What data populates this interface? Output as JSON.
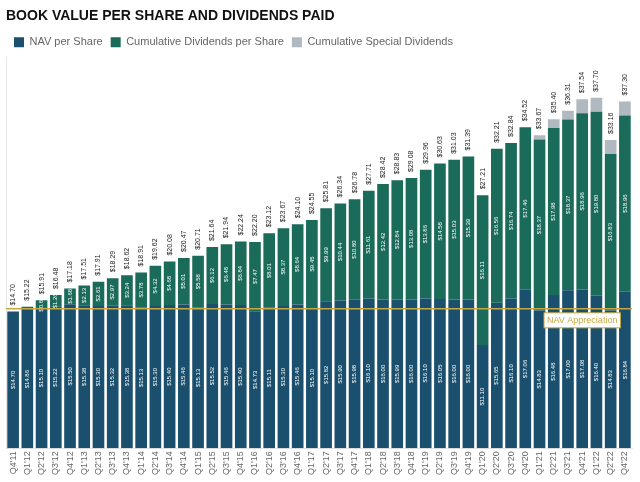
{
  "chart_data": {
    "type": "bar",
    "title": "BOOK VALUE PER SHARE AND DIVIDENDS PAID",
    "categories": [
      "Q4'11",
      "Q1'12",
      "Q2'12",
      "Q3'12",
      "Q4'12",
      "Q1'13",
      "Q2'13",
      "Q3'13",
      "Q4'13",
      "Q1'14",
      "Q2'14",
      "Q3'14",
      "Q4'14",
      "Q1'15",
      "Q2'15",
      "Q3'15",
      "Q4'15",
      "Q1'16",
      "Q2'16",
      "Q3'16",
      "Q4'16",
      "Q1'17",
      "Q2'17",
      "Q3'17",
      "Q4'17",
      "Q1'18",
      "Q2'18",
      "Q3'18",
      "Q4'18",
      "Q1'19",
      "Q2'19",
      "Q3'19",
      "Q4'19",
      "Q1'20",
      "Q2'20",
      "Q3'20",
      "Q4'20",
      "Q1'21",
      "Q2'21",
      "Q3'21",
      "Q4'21",
      "Q1'22",
      "Q2'22",
      "Q4'22"
    ],
    "series": [
      {
        "name": "NAV per Share",
        "color": "#1a4f6e",
        "values": [
          14.7,
          14.86,
          15.1,
          15.22,
          15.5,
          15.38,
          15.3,
          15.32,
          15.38,
          15.13,
          15.3,
          15.4,
          15.46,
          15.13,
          15.52,
          15.46,
          15.4,
          14.73,
          15.11,
          15.3,
          15.46,
          15.1,
          15.82,
          15.9,
          15.98,
          16.1,
          16.0,
          15.99,
          16.0,
          16.1,
          16.05,
          16.0,
          16.0,
          11.1,
          15.65,
          16.1,
          17.06,
          14.83,
          16.48,
          17.0,
          17.08,
          16.4,
          14.83,
          16.84
        ],
        "value_labels": [
          "$14.70",
          "$14.86",
          "$15.10",
          "$15.22",
          "$15.50",
          "$15.38",
          "$15.30",
          "$15.32",
          "$15.38",
          "$15.13",
          "$15.30",
          "$15.40",
          "$15.46",
          "$15.13",
          "$15.52",
          "$15.46",
          "$15.40",
          "$14.73",
          "$15.11",
          "$15.30",
          "$15.46",
          "$15.10",
          "$15.82",
          "$15.90",
          "$15.98",
          "$16.10",
          "$16.00",
          "$15.99",
          "$16.00",
          "$16.10",
          "$16.05",
          "$16.00",
          "$16.00",
          "$11.10",
          "$15.65",
          "$16.10",
          "$17.06",
          "$14.83",
          "$16.48",
          "$17.00",
          "$17.08",
          "$16.40",
          "$14.83",
          "$16.84"
        ]
      },
      {
        "name": "Cumulative Dividends per Share",
        "color": "#1a6b5a",
        "values": [
          0.0,
          0.36,
          0.81,
          1.26,
          1.68,
          2.13,
          2.61,
          2.97,
          3.24,
          3.78,
          4.32,
          4.68,
          5.01,
          5.58,
          6.12,
          6.48,
          6.84,
          7.47,
          8.01,
          8.37,
          8.64,
          9.45,
          9.99,
          10.44,
          10.8,
          11.61,
          12.42,
          12.84,
          13.08,
          13.86,
          14.58,
          15.03,
          15.39,
          16.11,
          16.56,
          16.74,
          17.46,
          18.37,
          17.98,
          18.37,
          18.96,
          19.8,
          16.83,
          18.96
        ],
        "value_labels": [
          null,
          null,
          "$0.81",
          "$1.26",
          "$1.68",
          "$2.13",
          "$2.61",
          "$2.97",
          "$3.24",
          "$3.78",
          "$4.32",
          "$4.68",
          "$5.01",
          "$5.58",
          "$6.12",
          "$6.48",
          "$6.84",
          "$7.47",
          "$8.01",
          "$8.37",
          "$8.64",
          "$9.45",
          "$9.99",
          "$10.44",
          "$10.80",
          "$11.61",
          "$12.42",
          "$12.84",
          "$13.08",
          "$13.86",
          "$14.58",
          "$15.03",
          "$15.39",
          "$16.11",
          "$16.56",
          "$16.74",
          "$17.46",
          "$18.37",
          "$17.98",
          "$18.37",
          "$18.96",
          "$19.80",
          "$16.83",
          "$18.96"
        ]
      },
      {
        "name": "Cumulative Special Dividends",
        "color": "#b0b8c0",
        "values": [
          0.0,
          0.0,
          0.0,
          0.0,
          0.0,
          0.0,
          0.0,
          0.0,
          0.0,
          0.0,
          0.0,
          0.0,
          0.0,
          0.0,
          0.0,
          0.0,
          0.0,
          0.0,
          0.0,
          0.0,
          0.0,
          0.0,
          0.0,
          0.0,
          0.0,
          0.0,
          0.0,
          0.0,
          0.0,
          0.0,
          0.0,
          0.0,
          0.0,
          0.0,
          0.0,
          0.0,
          0.0,
          0.47,
          0.94,
          0.94,
          1.5,
          1.5,
          1.5,
          1.5
        ]
      }
    ],
    "totals": [
      14.7,
      15.22,
      15.91,
      16.48,
      17.18,
      17.51,
      17.91,
      18.29,
      18.62,
      18.91,
      19.62,
      20.08,
      20.47,
      20.71,
      21.64,
      21.94,
      22.24,
      22.2,
      23.12,
      23.67,
      24.1,
      24.55,
      25.81,
      26.34,
      26.78,
      27.71,
      28.42,
      28.83,
      29.08,
      29.96,
      30.63,
      31.03,
      31.39,
      27.21,
      32.21,
      32.84,
      34.52,
      33.67,
      35.4,
      36.31,
      37.54,
      37.7,
      33.16,
      37.3
    ],
    "total_labels": [
      "$14.70",
      "$15.22",
      "$15.91",
      "$16.48",
      "$17.18",
      "$17.51",
      "$17.91",
      "$18.29",
      "$18.62",
      "$18.91",
      "$19.62",
      "$20.08",
      "$20.47",
      "$20.71",
      "$21.64",
      "$21.94",
      "$22.24",
      "$22.20",
      "$23.12",
      "$23.67",
      "$24.10",
      "$24.55",
      "$25.81",
      "$26.34",
      "$26.78",
      "$27.71",
      "$28.42",
      "$28.83",
      "$29.08",
      "$29.96",
      "$30.63",
      "$31.03",
      "$31.39",
      "$27.21",
      "$32.21",
      "$32.84",
      "$34.52",
      "$33.67",
      "$35.40",
      "$36.31",
      "$37.54",
      "$37.70",
      "$33.16",
      "$37.30"
    ],
    "hline": {
      "y": 15.0,
      "color": "#c8a842",
      "label": "NAV Appreciation"
    },
    "stacked": true,
    "data_labels": true,
    "ylim": [
      0,
      42
    ],
    "yticks": [],
    "tick_labels": "x",
    "grid": false,
    "legend": "top"
  }
}
